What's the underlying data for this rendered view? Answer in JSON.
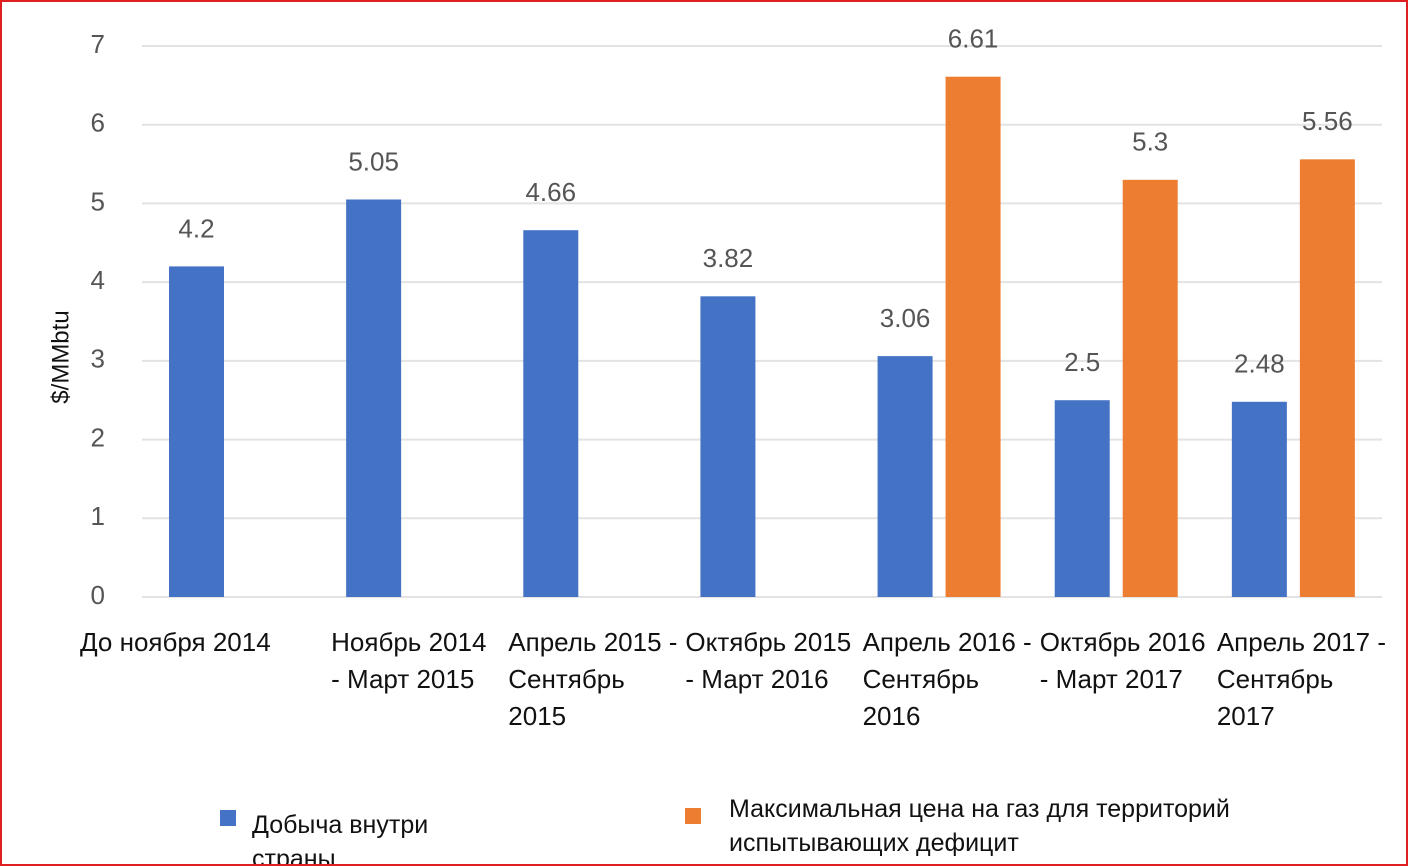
{
  "chart_data": {
    "type": "bar",
    "y_label": "$/MMbtu",
    "categories": [
      "До ноября 2014",
      "Ноябрь 2014 - Март 2015",
      "Апрель 2015 - Сентябрь 2015",
      "Октябрь 2015 - Март 2016",
      "Апрель 2016 - Сентябрь 2016",
      "Октябрь 2016 - Март 2017",
      "Апрель 2017 - Сентябрь 2017"
    ],
    "series": [
      {
        "name": "Добыча внутри страны",
        "color": "#4472c4",
        "values": [
          4.2,
          5.05,
          4.66,
          3.82,
          3.06,
          2.5,
          2.48
        ]
      },
      {
        "name": "Максимальная цена на газ для территорий испытывающих дефицит",
        "color": "#ed7d31",
        "values": [
          null,
          null,
          null,
          null,
          6.61,
          5.3,
          5.56
        ]
      }
    ],
    "ylim": [
      0,
      7
    ],
    "yticks": [
      0,
      1,
      2,
      3,
      4,
      5,
      6,
      7
    ],
    "grid": true
  }
}
